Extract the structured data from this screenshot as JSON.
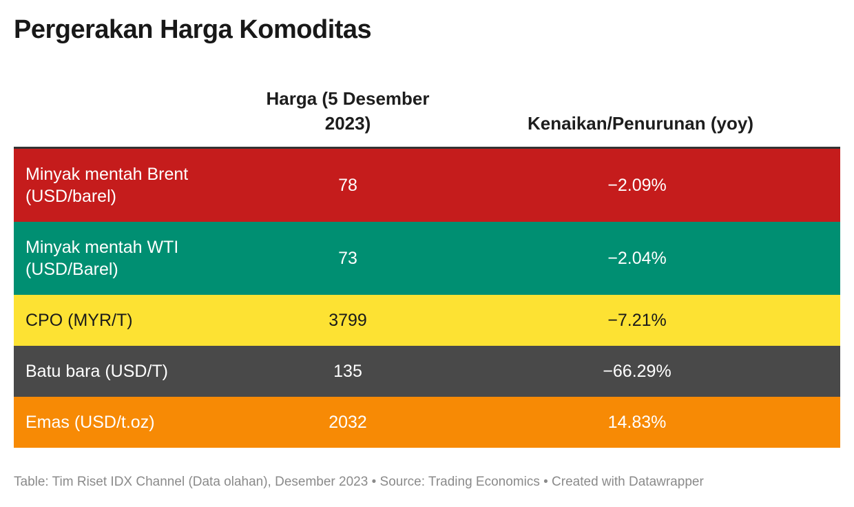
{
  "title": "Pergerakan Harga Komoditas",
  "table": {
    "headers": [
      "",
      "Harga (5 Desember 2023)",
      "Kenaikan/Penurunan (yoy)"
    ],
    "rows": [
      {
        "komoditas": "Minyak mentah Brent (USD/barel)",
        "harga": "78",
        "perubahan": "−2.09%",
        "bg": "#c51c1c",
        "fg": "#ffffff"
      },
      {
        "komoditas": "Minyak mentah WTI (USD/Barel)",
        "harga": "73",
        "perubahan": "−2.04%",
        "bg": "#008f72",
        "fg": "#ffffff"
      },
      {
        "komoditas": "CPO (MYR/T)",
        "harga": "3799",
        "perubahan": "−7.21%",
        "bg": "#fde233",
        "fg": "#1a1a1a"
      },
      {
        "komoditas": "Batu bara (USD/T)",
        "harga": "135",
        "perubahan": "−66.29%",
        "bg": "#494949",
        "fg": "#ffffff"
      },
      {
        "komoditas": "Emas (USD/t.oz)",
        "harga": "2032",
        "perubahan": "14.83%",
        "bg": "#f78a05",
        "fg": "#ffffff"
      }
    ]
  },
  "footer": "Table: Tim Riset IDX Channel (Data olahan), Desember 2023 • Source: Trading Economics • Created with Datawrapper"
}
